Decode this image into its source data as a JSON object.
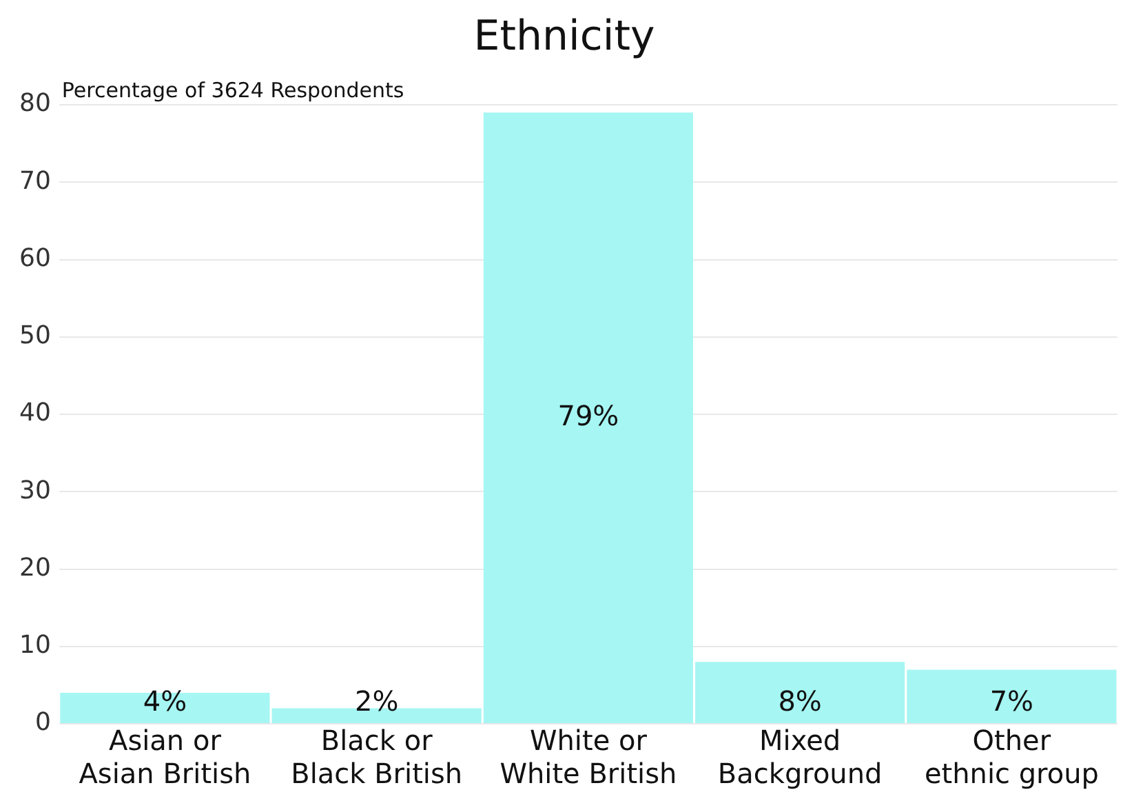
{
  "chart_data": {
    "type": "bar",
    "title": "Ethnicity",
    "ylabel": "Percentage of 3624 Respondents",
    "categories": [
      "Asian or Asian British",
      "Black or Black British",
      "White or White British",
      "Mixed Background",
      "Other ethnic group"
    ],
    "values": [
      4,
      2,
      79,
      8,
      7
    ],
    "value_labels": [
      "4%",
      "2%",
      "79%",
      "8%",
      "7%"
    ],
    "color": "#a6f6f3",
    "ylim": [
      0,
      80
    ],
    "yticks": [
      0,
      10,
      20,
      30,
      40,
      50,
      60,
      70,
      80
    ],
    "grid": "y",
    "legend": false
  }
}
